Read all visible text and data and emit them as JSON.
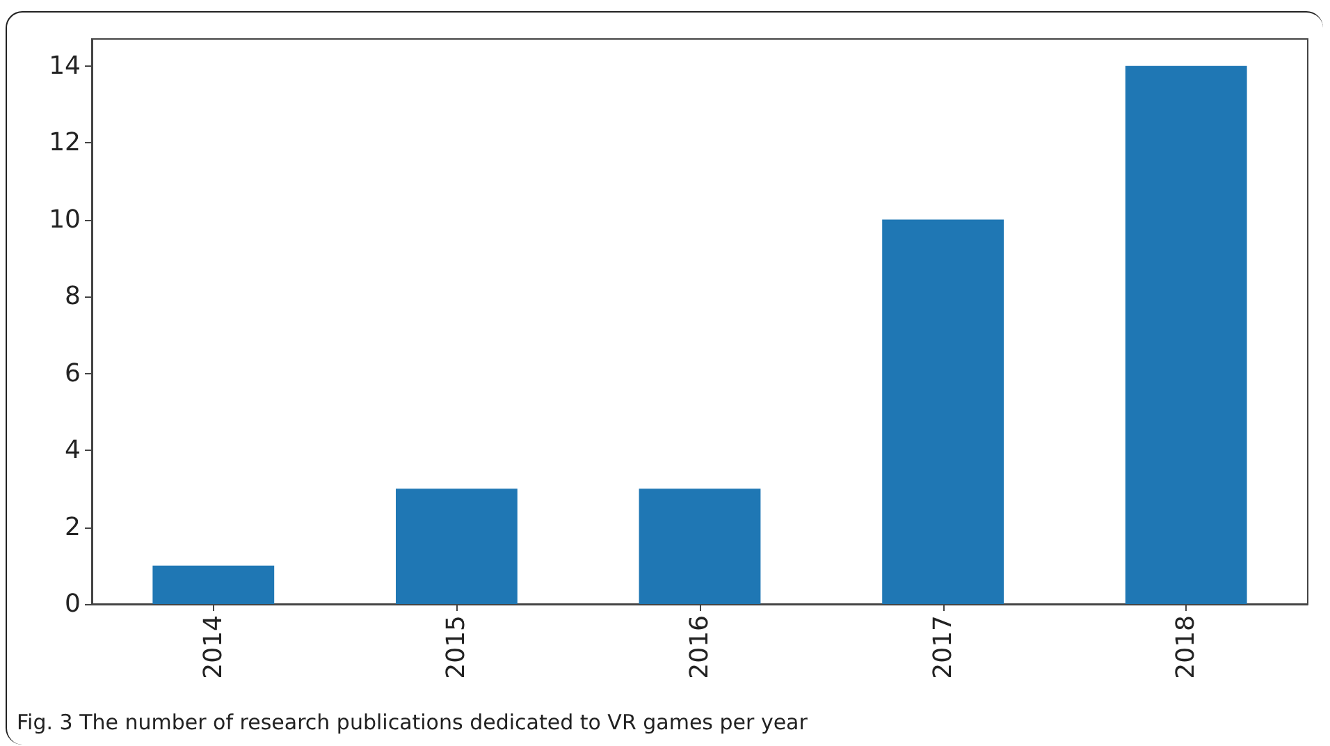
{
  "chart_data": {
    "type": "bar",
    "categories": [
      "2014",
      "2015",
      "2016",
      "2017",
      "2018"
    ],
    "values": [
      1,
      3,
      3,
      10,
      14
    ],
    "color": "#1f77b4",
    "ylim": [
      0,
      14.7
    ],
    "yticks": [
      0,
      2,
      4,
      6,
      8,
      10,
      12,
      14
    ],
    "grid": false,
    "annotations": [
      "Fig. 3 The number of research publications dedicated to VR games per year"
    ]
  }
}
